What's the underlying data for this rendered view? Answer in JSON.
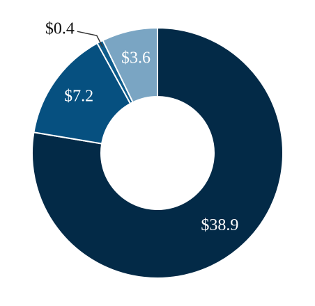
{
  "chart_data": {
    "type": "pie",
    "subtype": "donut",
    "slices": [
      {
        "label": "$38.9",
        "value": 38.9,
        "color": "#032a47"
      },
      {
        "label": "$7.2",
        "value": 7.2,
        "color": "#065080"
      },
      {
        "label": "$0.4",
        "value": 0.4,
        "color": "#0e5c8c"
      },
      {
        "label": "$3.6",
        "value": 3.6,
        "color": "#7aa5c3"
      }
    ],
    "start": "12 o'clock",
    "direction": "clockwise",
    "legend": "none"
  }
}
